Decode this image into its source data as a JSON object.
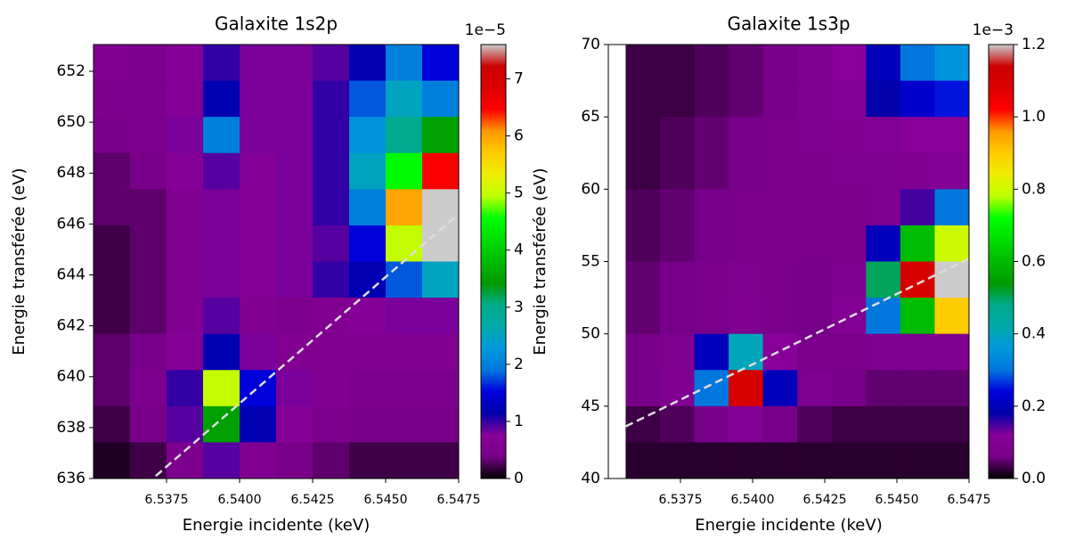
{
  "chart_data": [
    {
      "type": "heatmap",
      "title": "Galaxite 1s2p",
      "xlabel": "Energie incidente (keV)",
      "ylabel": "Energie transférée (eV)",
      "xlim": [
        6.535,
        6.5475
      ],
      "ylim": [
        636,
        653.05
      ],
      "xticks": [
        6.5375,
        {
          "value": 6.54,
          "label": "6.5400"
        },
        6.5425,
        {
          "value": 6.545,
          "label": "6.5450"
        },
        6.5475
      ],
      "yticks": [
        636,
        638,
        640,
        642,
        644,
        646,
        648,
        650,
        652
      ],
      "extent": [
        6.535,
        6.5475,
        636,
        653.05
      ],
      "z": [
        [
          0.6,
          0.5,
          0.7,
          1.0,
          0.8,
          0.8,
          0.9,
          1.2,
          2.0,
          1.5
        ],
        [
          0.5,
          0.5,
          0.7,
          1.2,
          0.8,
          0.8,
          1.0,
          1.8,
          2.5,
          2.0
        ],
        [
          0.4,
          0.5,
          0.8,
          2.0,
          0.8,
          0.8,
          1.0,
          2.2,
          3.0,
          3.5
        ],
        [
          0.3,
          0.4,
          0.7,
          0.9,
          0.7,
          0.8,
          1.0,
          2.5,
          4.5,
          6.5
        ],
        [
          0.3,
          0.3,
          0.6,
          0.8,
          0.7,
          0.8,
          1.0,
          2.0,
          6.0,
          9.0
        ],
        [
          0.2,
          0.3,
          0.6,
          0.8,
          0.7,
          0.8,
          0.9,
          1.5,
          5.0,
          8.5
        ],
        [
          0.2,
          0.3,
          0.6,
          0.8,
          0.7,
          0.8,
          1.0,
          1.2,
          1.8,
          2.5
        ],
        [
          0.2,
          0.3,
          0.6,
          0.9,
          0.6,
          0.5,
          0.6,
          0.7,
          0.8,
          0.8
        ],
        [
          0.3,
          0.4,
          0.7,
          1.2,
          0.8,
          0.6,
          0.6,
          0.6,
          0.6,
          0.6
        ],
        [
          0.3,
          0.5,
          1.0,
          5.0,
          1.5,
          0.8,
          0.6,
          0.5,
          0.5,
          0.5
        ],
        [
          0.2,
          0.4,
          0.9,
          3.5,
          1.2,
          0.7,
          0.5,
          0.4,
          0.4,
          0.4
        ],
        [
          0.1,
          0.2,
          0.5,
          0.9,
          0.6,
          0.4,
          0.3,
          0.2,
          0.2,
          0.2
        ]
      ],
      "colorbar": {
        "lim": [
          0,
          7.6
        ],
        "ticks": [
          0,
          1,
          2,
          3,
          4,
          5,
          6,
          7
        ],
        "offset_label": "1e−5"
      },
      "colorscale": [
        "#000000",
        "#770088",
        "#880099",
        "#0000aa",
        "#0000dd",
        "#0077dd",
        "#0099dd",
        "#00aaaa",
        "#00aa88",
        "#009900",
        "#00bb00",
        "#00dd00",
        "#00ff00",
        "#bbff00",
        "#eeee00",
        "#ffcc00",
        "#ff9900",
        "#ff0000",
        "#dd0000",
        "#cc0000",
        "#cccccc"
      ],
      "lines": [
        {
          "x": [
            6.53713,
            6.5475
          ],
          "y": [
            636.1,
            646.4
          ],
          "color": "#dddddd"
        }
      ]
    },
    {
      "type": "heatmap",
      "title": "Galaxite 1s3p",
      "xlabel": "Energie incidente (keV)",
      "ylabel": "Energie transférée (eV)",
      "xlim": [
        6.535,
        6.5475
      ],
      "ylim": [
        40,
        70
      ],
      "xticks": [
        6.5375,
        {
          "value": 6.54,
          "label": "6.5400"
        },
        6.5425,
        {
          "value": 6.545,
          "label": "6.5450"
        },
        6.5475
      ],
      "yticks": [
        40,
        45,
        50,
        55,
        60,
        65,
        70
      ],
      "extent": [
        6.5356,
        6.5475,
        40,
        70
      ],
      "z": [
        [
          0.03,
          0.03,
          0.04,
          0.05,
          0.06,
          0.08,
          0.12,
          0.2,
          0.3,
          0.35
        ],
        [
          0.03,
          0.03,
          0.04,
          0.05,
          0.06,
          0.08,
          0.1,
          0.18,
          0.22,
          0.25
        ],
        [
          0.03,
          0.04,
          0.05,
          0.06,
          0.07,
          0.08,
          0.09,
          0.1,
          0.12,
          0.12
        ],
        [
          0.03,
          0.04,
          0.05,
          0.06,
          0.07,
          0.07,
          0.08,
          0.08,
          0.09,
          0.1
        ],
        [
          0.04,
          0.05,
          0.06,
          0.07,
          0.07,
          0.07,
          0.07,
          0.08,
          0.15,
          0.3
        ],
        [
          0.04,
          0.05,
          0.06,
          0.07,
          0.07,
          0.07,
          0.07,
          0.2,
          0.6,
          0.8
        ],
        [
          0.05,
          0.06,
          0.07,
          0.08,
          0.07,
          0.06,
          0.08,
          0.5,
          1.1,
          1.4
        ],
        [
          0.05,
          0.06,
          0.07,
          0.09,
          0.07,
          0.06,
          0.1,
          0.3,
          0.6,
          0.9
        ],
        [
          0.06,
          0.08,
          0.2,
          0.4,
          0.12,
          0.07,
          0.07,
          0.08,
          0.08,
          0.08
        ],
        [
          0.06,
          0.09,
          0.3,
          1.1,
          0.2,
          0.08,
          0.06,
          0.05,
          0.05,
          0.05
        ],
        [
          0.03,
          0.04,
          0.06,
          0.1,
          0.06,
          0.04,
          0.03,
          0.03,
          0.03,
          0.03
        ],
        [
          0.02,
          0.02,
          0.02,
          0.02,
          0.02,
          0.02,
          0.02,
          0.02,
          0.02,
          0.02
        ]
      ],
      "colorbar": {
        "lim": [
          0,
          1.2
        ],
        "ticks": [
          {
            "value": 0,
            "label": "0.0"
          },
          0.2,
          0.4,
          0.6,
          0.8,
          {
            "value": 1,
            "label": "1.0"
          },
          1.2
        ],
        "offset_label": "1e−3"
      },
      "colorscale": [
        "#000000",
        "#770088",
        "#880099",
        "#0000aa",
        "#0000dd",
        "#0077dd",
        "#0099dd",
        "#00aaaa",
        "#00aa88",
        "#009900",
        "#00bb00",
        "#00dd00",
        "#00ff00",
        "#bbff00",
        "#eeee00",
        "#ffcc00",
        "#ff9900",
        "#ff0000",
        "#dd0000",
        "#cc0000",
        "#cccccc"
      ],
      "lines": [
        {
          "x": [
            6.5356,
            6.5475
          ],
          "y": [
            43.6,
            55.2
          ],
          "color": "#dddddd"
        }
      ]
    }
  ]
}
